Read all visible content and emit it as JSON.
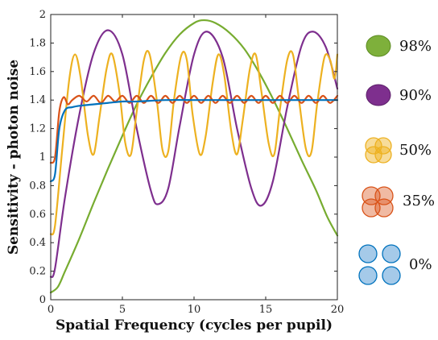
{
  "chart_data": {
    "type": "line",
    "title": "",
    "xlabel": "Spatial Frequency (cycles per pupil)",
    "ylabel": "Sensitivity - photon noise",
    "xlim": [
      0,
      20
    ],
    "ylim": [
      0,
      2
    ],
    "xticks": [
      0,
      5,
      10,
      15,
      20
    ],
    "yticks": [
      0,
      0.2,
      0.4,
      0.6,
      0.8,
      1,
      1.2,
      1.4,
      1.6,
      1.8,
      2
    ],
    "grid": false,
    "legend_position": "right",
    "series": [
      {
        "name": "98%",
        "color": "#77ac30",
        "points": [
          [
            0,
            0.05
          ],
          [
            0.5,
            0.09
          ],
          [
            1,
            0.2
          ],
          [
            2,
            0.43
          ],
          [
            3,
            0.68
          ],
          [
            4,
            0.92
          ],
          [
            5,
            1.15
          ],
          [
            6,
            1.37
          ],
          [
            7,
            1.56
          ],
          [
            8,
            1.73
          ],
          [
            9,
            1.86
          ],
          [
            10,
            1.94
          ],
          [
            10.7,
            1.96
          ],
          [
            11.5,
            1.94
          ],
          [
            12.5,
            1.87
          ],
          [
            13.5,
            1.76
          ],
          [
            14.5,
            1.6
          ],
          [
            15.5,
            1.41
          ],
          [
            16.5,
            1.2
          ],
          [
            17.5,
            0.98
          ],
          [
            18.5,
            0.77
          ],
          [
            19.3,
            0.58
          ],
          [
            20,
            0.45
          ]
        ]
      },
      {
        "name": "90%",
        "color": "#7e2f8e",
        "points": [
          [
            0,
            0.16
          ],
          [
            0.3,
            0.22
          ],
          [
            1,
            0.72
          ],
          [
            2,
            1.3
          ],
          [
            3,
            1.73
          ],
          [
            4,
            1.89
          ],
          [
            5,
            1.72
          ],
          [
            6,
            1.2
          ],
          [
            7,
            0.76
          ],
          [
            7.5,
            0.67
          ],
          [
            8.2,
            0.78
          ],
          [
            9,
            1.22
          ],
          [
            10,
            1.72
          ],
          [
            10.9,
            1.88
          ],
          [
            12,
            1.7
          ],
          [
            13,
            1.2
          ],
          [
            14,
            0.78
          ],
          [
            14.7,
            0.66
          ],
          [
            15.5,
            0.83
          ],
          [
            16.5,
            1.35
          ],
          [
            17.5,
            1.78
          ],
          [
            18.3,
            1.88
          ],
          [
            19.2,
            1.77
          ],
          [
            20,
            1.48
          ]
        ]
      },
      {
        "name": "50%",
        "color": "#edb120",
        "points": [
          [
            0,
            0.46
          ],
          [
            0.3,
            0.52
          ],
          [
            0.8,
            1.05
          ],
          [
            1.3,
            1.55
          ],
          [
            1.7,
            1.72
          ],
          [
            2.1,
            1.55
          ],
          [
            2.6,
            1.15
          ],
          [
            3,
            1.02
          ],
          [
            3.4,
            1.28
          ],
          [
            3.9,
            1.62
          ],
          [
            4.3,
            1.72
          ],
          [
            4.8,
            1.45
          ],
          [
            5.2,
            1.1
          ],
          [
            5.6,
            1.02
          ],
          [
            6,
            1.32
          ],
          [
            6.5,
            1.68
          ],
          [
            6.9,
            1.72
          ],
          [
            7.4,
            1.4
          ],
          [
            7.8,
            1.05
          ],
          [
            8.2,
            1.04
          ],
          [
            8.6,
            1.4
          ],
          [
            9.1,
            1.71
          ],
          [
            9.5,
            1.68
          ],
          [
            9.9,
            1.3
          ],
          [
            10.4,
            1.02
          ],
          [
            10.8,
            1.14
          ],
          [
            11.3,
            1.52
          ],
          [
            11.7,
            1.72
          ],
          [
            12.1,
            1.58
          ],
          [
            12.6,
            1.18
          ],
          [
            13,
            1.02
          ],
          [
            13.4,
            1.26
          ],
          [
            13.9,
            1.62
          ],
          [
            14.3,
            1.72
          ],
          [
            14.7,
            1.46
          ],
          [
            15.2,
            1.1
          ],
          [
            15.6,
            1.02
          ],
          [
            16,
            1.34
          ],
          [
            16.5,
            1.68
          ],
          [
            16.9,
            1.72
          ],
          [
            17.3,
            1.42
          ],
          [
            17.8,
            1.06
          ],
          [
            18.2,
            1.04
          ],
          [
            18.6,
            1.38
          ],
          [
            19.1,
            1.7
          ],
          [
            19.5,
            1.68
          ],
          [
            19.8,
            1.55
          ],
          [
            20,
            1.72
          ]
        ]
      },
      {
        "name": "35%",
        "color": "#d95319",
        "points": [
          [
            0,
            0.96
          ],
          [
            0.3,
            1.0
          ],
          [
            0.6,
            1.32
          ],
          [
            0.9,
            1.42
          ],
          [
            1.2,
            1.37
          ],
          [
            1.5,
            1.4
          ],
          [
            2,
            1.43
          ],
          [
            2.5,
            1.39
          ],
          [
            3,
            1.43
          ],
          [
            3.5,
            1.38
          ],
          [
            4,
            1.43
          ],
          [
            4.5,
            1.39
          ],
          [
            5,
            1.43
          ],
          [
            5.5,
            1.38
          ],
          [
            6,
            1.43
          ],
          [
            6.5,
            1.38
          ],
          [
            7,
            1.43
          ],
          [
            7.5,
            1.38
          ],
          [
            8,
            1.43
          ],
          [
            8.5,
            1.38
          ],
          [
            9,
            1.43
          ],
          [
            9.5,
            1.38
          ],
          [
            10,
            1.43
          ],
          [
            10.5,
            1.38
          ],
          [
            11,
            1.43
          ],
          [
            11.5,
            1.38
          ],
          [
            12,
            1.43
          ],
          [
            12.5,
            1.38
          ],
          [
            13,
            1.43
          ],
          [
            13.5,
            1.38
          ],
          [
            14,
            1.43
          ],
          [
            14.5,
            1.38
          ],
          [
            15,
            1.43
          ],
          [
            15.5,
            1.38
          ],
          [
            16,
            1.43
          ],
          [
            16.5,
            1.38
          ],
          [
            17,
            1.43
          ],
          [
            17.5,
            1.38
          ],
          [
            18,
            1.43
          ],
          [
            18.5,
            1.38
          ],
          [
            19,
            1.43
          ],
          [
            19.5,
            1.38
          ],
          [
            20,
            1.43
          ]
        ]
      },
      {
        "name": "0%",
        "color": "#0072bd",
        "points": [
          [
            0,
            0.83
          ],
          [
            0.3,
            0.88
          ],
          [
            0.6,
            1.2
          ],
          [
            1,
            1.33
          ],
          [
            1.5,
            1.35
          ],
          [
            2,
            1.36
          ],
          [
            3,
            1.37
          ],
          [
            4,
            1.38
          ],
          [
            5,
            1.39
          ],
          [
            6,
            1.39
          ],
          [
            8,
            1.4
          ],
          [
            10,
            1.4
          ],
          [
            12,
            1.4
          ],
          [
            14,
            1.4
          ],
          [
            16,
            1.4
          ],
          [
            18,
            1.4
          ],
          [
            20,
            1.4
          ]
        ]
      }
    ]
  },
  "legend": {
    "items": [
      {
        "label": "98%",
        "icon": "single-disc-icon"
      },
      {
        "label": "90%",
        "icon": "single-disc-icon"
      },
      {
        "label": "50%",
        "icon": "four-disc-icon"
      },
      {
        "label": "35%",
        "icon": "four-disc-icon"
      },
      {
        "label": "0%",
        "icon": "four-separate-discs-icon"
      }
    ]
  }
}
